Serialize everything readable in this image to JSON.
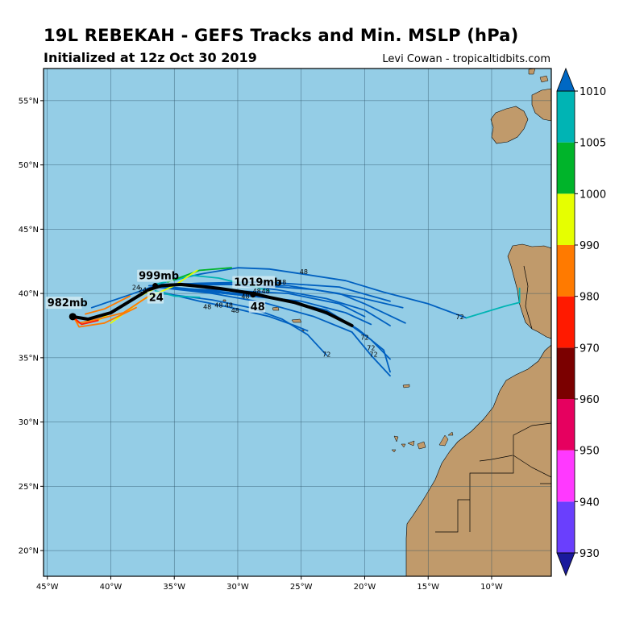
{
  "header": {
    "title": "19L REBEKAH - GEFS Tracks and Min. MSLP (hPa)",
    "subtitle": "Initialized at 12z Oct 30 2019",
    "credit": "Levi Cowan - tropicaltidbits.com"
  },
  "map": {
    "lon_range": [
      -45.3,
      -5.3
    ],
    "lat_range": [
      18.0,
      57.5
    ],
    "lon_ticks": [
      -45,
      -40,
      -35,
      -30,
      -25,
      -20,
      -15,
      -10
    ],
    "lon_tick_labels": [
      "45°W",
      "40°W",
      "35°W",
      "30°W",
      "25°W",
      "20°W",
      "15°W",
      "10°W"
    ],
    "lat_ticks": [
      20,
      25,
      30,
      35,
      40,
      45,
      50,
      55
    ],
    "lat_tick_labels": [
      "20°N",
      "25°N",
      "30°N",
      "35°N",
      "40°N",
      "45°N",
      "50°N",
      "55°N"
    ],
    "ocean_color": "#94cde6",
    "land_color": "#c09a6b",
    "grid": true
  },
  "colorbar": {
    "levels": [
      930,
      940,
      950,
      960,
      970,
      980,
      990,
      1000,
      1005,
      1010
    ],
    "tick_labels": [
      "930",
      "940",
      "950",
      "960",
      "970",
      "980",
      "990",
      "1000",
      "1005",
      "1010"
    ],
    "colors": [
      "#6a3ffd",
      "#ff39ff",
      "#e6005f",
      "#7b0000",
      "#ff1a00",
      "#ff7a00",
      "#e6ff00",
      "#00b42a",
      "#00b4b4"
    ],
    "under_color": "#1a1a9c",
    "over_color": "#0068c4"
  },
  "tracks": [
    {
      "color": "#0060c0",
      "points": [
        [
          -41.5,
          38.9
        ],
        [
          -38.5,
          39.9
        ],
        [
          -36.5,
          40.6
        ],
        [
          -30.5,
          40.7
        ],
        [
          -27,
          40.3
        ],
        [
          -23,
          39.6
        ],
        [
          -20,
          38.7
        ],
        [
          -18,
          37.5
        ]
      ]
    },
    {
      "color": "#0060c0",
      "points": [
        [
          -37,
          40.6
        ],
        [
          -33,
          40.8
        ],
        [
          -28,
          40.9
        ],
        [
          -22,
          40.5
        ],
        [
          -18,
          39.4
        ]
      ]
    },
    {
      "color": "#0060c0",
      "points": [
        [
          -36.5,
          40.7
        ],
        [
          -33,
          41.5
        ],
        [
          -30,
          42.0
        ],
        [
          -27.5,
          41.9
        ],
        [
          -24.8,
          41.5
        ],
        [
          -21.5,
          41.0
        ],
        [
          -18.5,
          40.1
        ],
        [
          -15,
          39.2
        ],
        [
          -12,
          38.1
        ]
      ]
    },
    {
      "color": "#0060c0",
      "points": [
        [
          -36.5,
          40.7
        ],
        [
          -32,
          40.8
        ],
        [
          -28,
          40.6
        ],
        [
          -24,
          40.3
        ],
        [
          -20.5,
          39.7
        ],
        [
          -17,
          38.9
        ]
      ]
    },
    {
      "color": "#0060c0",
      "points": [
        [
          -36.5,
          40.6
        ],
        [
          -32,
          40.2
        ],
        [
          -28,
          39.8
        ],
        [
          -24.5,
          39.0
        ],
        [
          -21.5,
          37.8
        ],
        [
          -19.5,
          36.4
        ],
        [
          -18,
          34.9
        ]
      ]
    },
    {
      "color": "#0060c0",
      "points": [
        [
          -36.5,
          40.5
        ],
        [
          -32,
          40.0
        ],
        [
          -28,
          39.3
        ],
        [
          -24,
          38.2
        ],
        [
          -21,
          37.0
        ],
        [
          -19.5,
          35.2
        ],
        [
          -18,
          33.6
        ]
      ]
    },
    {
      "color": "#0060c0",
      "points": [
        [
          -36.0,
          40.0
        ],
        [
          -32,
          39.5
        ],
        [
          -29,
          38.9
        ],
        [
          -26.5,
          38.0
        ],
        [
          -24.5,
          36.8
        ],
        [
          -23,
          35.2
        ]
      ]
    },
    {
      "color": "#0060c0",
      "points": [
        [
          -36.0,
          40.1
        ],
        [
          -33,
          39.4
        ],
        [
          -30.5,
          38.9
        ],
        [
          -27.5,
          38.2
        ],
        [
          -25.5,
          37.5
        ],
        [
          -24.5,
          37.1
        ]
      ]
    },
    {
      "color": "#0060c0",
      "points": [
        [
          -36.5,
          40.5
        ],
        [
          -33,
          40.2
        ],
        [
          -29,
          39.8
        ],
        [
          -25,
          39.4
        ],
        [
          -21.5,
          38.5
        ],
        [
          -19.5,
          37.6
        ]
      ]
    },
    {
      "color": "#0060c0",
      "points": [
        [
          -36.5,
          40.5
        ],
        [
          -32,
          40.1
        ],
        [
          -27,
          39.6
        ],
        [
          -23,
          38.7
        ],
        [
          -20.5,
          37.2
        ],
        [
          -18.5,
          35.6
        ],
        [
          -18,
          33.9
        ]
      ]
    },
    {
      "color": "#0060c0",
      "points": [
        [
          -35.5,
          40.4
        ],
        [
          -30,
          40.2
        ],
        [
          -26,
          40.0
        ],
        [
          -22,
          39.2
        ],
        [
          -20,
          38.2
        ]
      ]
    },
    {
      "color": "#0060c0",
      "points": [
        [
          -36.5,
          40.6
        ],
        [
          -31,
          40.7
        ],
        [
          -26,
          40.6
        ],
        [
          -22,
          40.0
        ],
        [
          -20,
          39.2
        ],
        [
          -16.8,
          37.7
        ]
      ]
    },
    {
      "color": "#00b4b4",
      "points": [
        [
          -36.5,
          40.7
        ],
        [
          -33.5,
          41.4
        ],
        [
          -31.5,
          41.2
        ],
        [
          -29,
          40.6
        ],
        [
          -27.5,
          40.2
        ]
      ]
    },
    {
      "color": "#00b4b4",
      "points": [
        [
          -12,
          38.1
        ],
        [
          -9,
          39.0
        ],
        [
          -7.8,
          39.3
        ],
        [
          -7.8,
          40.4
        ]
      ]
    },
    {
      "color": "#00b42a",
      "points": [
        [
          -35.5,
          40.9
        ],
        [
          -33,
          41.8
        ],
        [
          -30.5,
          42.0
        ]
      ]
    },
    {
      "color": "#00b4b4",
      "points": [
        [
          -36.5,
          40.2
        ],
        [
          -35,
          39.8
        ],
        [
          -33,
          39.7
        ]
      ]
    },
    {
      "color": "#e6ff00",
      "points": [
        [
          -40,
          37.7
        ],
        [
          -37.5,
          39.5
        ],
        [
          -35,
          40.6
        ],
        [
          -33.2,
          41.8
        ]
      ]
    },
    {
      "color": "#e6ff00",
      "points": [
        [
          -41,
          37.9
        ],
        [
          -38.5,
          39.4
        ],
        [
          -36.5,
          40.4
        ]
      ]
    },
    {
      "color": "#ff7a00",
      "points": [
        [
          -43,
          38.1
        ],
        [
          -42.5,
          37.7
        ],
        [
          -41,
          38.0
        ],
        [
          -39,
          38.5
        ],
        [
          -37,
          39.8
        ]
      ]
    },
    {
      "color": "#ff7a00",
      "points": [
        [
          -42,
          38.4
        ],
        [
          -40.5,
          38.8
        ],
        [
          -38.5,
          39.8
        ]
      ]
    },
    {
      "color": "#ff7a00",
      "points": [
        [
          -43,
          38.3
        ],
        [
          -42.5,
          37.4
        ],
        [
          -40.5,
          37.7
        ],
        [
          -38,
          38.9
        ]
      ]
    },
    {
      "color": "#ff1a00",
      "points": [
        [
          -43,
          38.2
        ],
        [
          -42.3,
          37.6
        ],
        [
          -41,
          37.9
        ]
      ]
    }
  ],
  "mean_track": {
    "color": "#000000",
    "points": [
      [
        -43.0,
        38.2
      ],
      [
        -41.8,
        38.0
      ],
      [
        -40.0,
        38.5
      ],
      [
        -38.5,
        39.4
      ],
      [
        -37.0,
        40.3
      ],
      [
        -36.0,
        40.6
      ],
      [
        -34.5,
        40.7
      ],
      [
        -31.5,
        40.4
      ],
      [
        -28.8,
        40.0
      ],
      [
        -27.5,
        39.7
      ],
      [
        -25.5,
        39.3
      ],
      [
        -23,
        38.5
      ],
      [
        -21,
        37.5
      ]
    ]
  },
  "labels": [
    {
      "text": "982mb",
      "lon": -45.0,
      "lat": 39.0
    },
    {
      "text": "999mb",
      "lon": -37.8,
      "lat": 41.1
    },
    {
      "text": "24",
      "lon": -37.0,
      "lat": 39.4
    },
    {
      "text": "1019mb",
      "lon": -30.3,
      "lat": 40.6
    },
    {
      "text": "48",
      "lon": -29.0,
      "lat": 38.7
    }
  ],
  "hour_labels": [
    {
      "text": "48",
      "lon": -24.8,
      "lat": 41.5
    },
    {
      "text": "48",
      "lon": -26.5,
      "lat": 40.7
    },
    {
      "text": "48",
      "lon": -27.8,
      "lat": 40.0
    },
    {
      "text": "48",
      "lon": -28.5,
      "lat": 40.0
    },
    {
      "text": "48",
      "lon": -29.4,
      "lat": 39.6
    },
    {
      "text": "48",
      "lon": -30.7,
      "lat": 38.9
    },
    {
      "text": "48",
      "lon": -31.5,
      "lat": 38.9
    },
    {
      "text": "48",
      "lon": -32.4,
      "lat": 38.8
    },
    {
      "text": "48",
      "lon": -30.2,
      "lat": 38.5
    },
    {
      "text": "24",
      "lon": -37.5,
      "lat": 40.1
    },
    {
      "text": "24",
      "lon": -38.0,
      "lat": 40.3
    },
    {
      "text": "72",
      "lon": -12.5,
      "lat": 38.0
    },
    {
      "text": "72",
      "lon": -20.0,
      "lat": 36.4
    },
    {
      "text": "72",
      "lon": -19.5,
      "lat": 35.6
    },
    {
      "text": "72",
      "lon": -19.3,
      "lat": 35.1
    },
    {
      "text": "72",
      "lon": -23.0,
      "lat": 35.1
    }
  ]
}
